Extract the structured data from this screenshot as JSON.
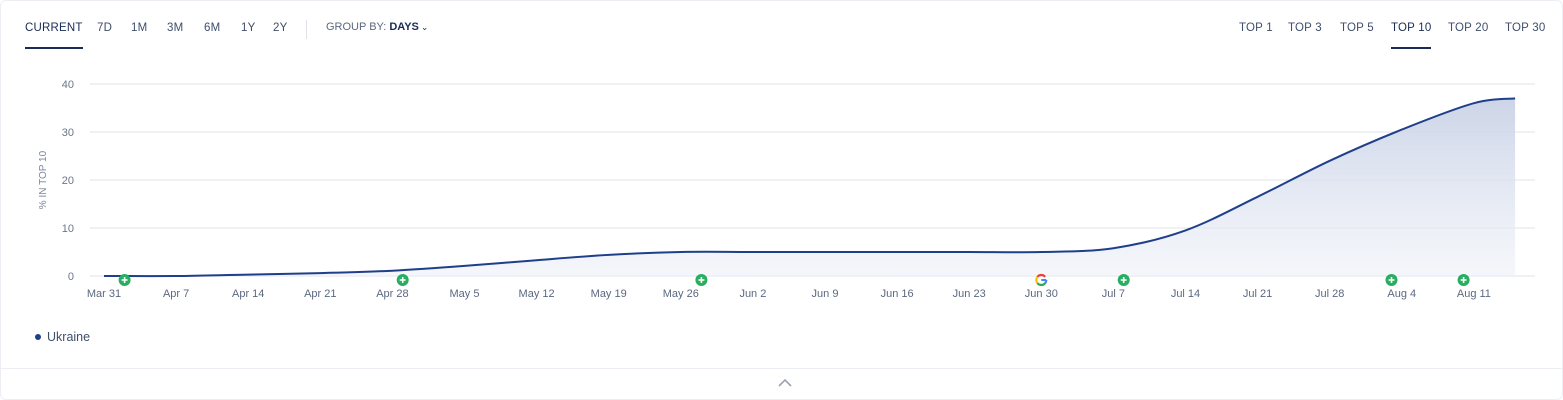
{
  "toolbar": {
    "periods": [
      "CURRENT",
      "7D",
      "1M",
      "3M",
      "6M",
      "1Y",
      "2Y"
    ],
    "active_period": "CURRENT",
    "group_by_label": "GROUP BY:",
    "group_by_value": "DAYS",
    "tops": [
      "TOP 1",
      "TOP 3",
      "TOP 5",
      "TOP 10",
      "TOP 20",
      "TOP 30"
    ],
    "active_top": "TOP 10"
  },
  "colors": {
    "line": "#1f3f8a",
    "marker": "#27ae60",
    "grid": "#dfe3ea"
  },
  "chart_data": {
    "type": "area",
    "ylabel": "% IN TOP 10",
    "ylim": [
      0,
      40
    ],
    "yticks": [
      0,
      10,
      20,
      30,
      40
    ],
    "xticks": [
      "Mar 31",
      "Apr 7",
      "Apr 14",
      "Apr 21",
      "Apr 28",
      "May 5",
      "May 12",
      "May 19",
      "May 26",
      "Jun 2",
      "Jun 9",
      "Jun 16",
      "Jun 23",
      "Jun 30",
      "Jul 7",
      "Jul 14",
      "Jul 21",
      "Jul 28",
      "Aug 4",
      "Aug 11"
    ],
    "series": [
      {
        "name": "Ukraine",
        "points": [
          {
            "x": "Mar 31",
            "y": 0
          },
          {
            "x": "Apr 7",
            "y": 0
          },
          {
            "x": "Apr 14",
            "y": 0.3
          },
          {
            "x": "Apr 21",
            "y": 0.6
          },
          {
            "x": "Apr 28",
            "y": 1.1
          },
          {
            "x": "May 5",
            "y": 2.1
          },
          {
            "x": "May 12",
            "y": 3.3
          },
          {
            "x": "May 19",
            "y": 4.4
          },
          {
            "x": "May 26",
            "y": 5
          },
          {
            "x": "Jun 2",
            "y": 5
          },
          {
            "x": "Jun 9",
            "y": 5
          },
          {
            "x": "Jun 16",
            "y": 5
          },
          {
            "x": "Jun 23",
            "y": 5
          },
          {
            "x": "Jun 30",
            "y": 5
          },
          {
            "x": "Jul 7",
            "y": 5.8
          },
          {
            "x": "Jul 14",
            "y": 9.5
          },
          {
            "x": "Jul 21",
            "y": 16.5
          },
          {
            "x": "Jul 28",
            "y": 24
          },
          {
            "x": "Aug 4",
            "y": 30.5
          },
          {
            "x": "Aug 11",
            "y": 36
          },
          {
            "x": "Aug 15",
            "y": 37
          }
        ]
      }
    ],
    "markers": [
      {
        "type": "plus",
        "x": "Apr 2"
      },
      {
        "type": "plus",
        "x": "Apr 29"
      },
      {
        "type": "plus",
        "x": "May 28"
      },
      {
        "type": "google-icon",
        "x": "Jun 30"
      },
      {
        "type": "plus",
        "x": "Jul 8"
      },
      {
        "type": "plus",
        "x": "Aug 3"
      },
      {
        "type": "plus",
        "x": "Aug 10"
      }
    ]
  },
  "legend": {
    "label": "Ukraine"
  }
}
